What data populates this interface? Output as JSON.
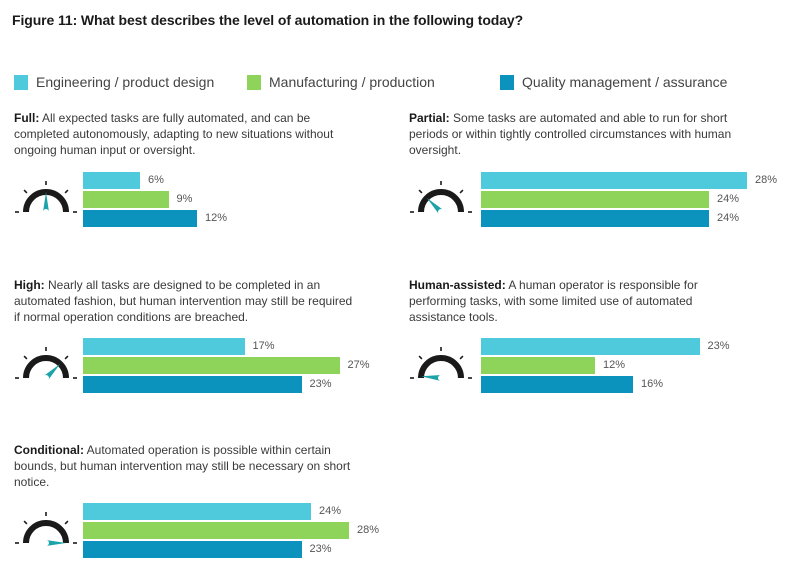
{
  "title": "Figure 11: What best describes the level of automation in the following today?",
  "colors": {
    "engineering": "#4fc9dc",
    "manufacturing": "#8ed45a",
    "quality": "#0b93bd",
    "gauge_arc": "#1a1a1a",
    "needle": "#1aa3a8"
  },
  "chart_data": {
    "type": "bar",
    "orientation": "horizontal",
    "title": "Figure 11: What best describes the level of automation in the following today?",
    "legend": [
      "Engineering / product design",
      "Manufacturing / production",
      "Quality management / assurance"
    ],
    "legend_position": "top",
    "value_unit": "%",
    "panels": [
      {
        "key": "full",
        "name": "Full:",
        "description": "All expected tasks are fully automated, and can be completed autonomously, adapting to new situations without ongoing human input or oversight.",
        "gauge_level": "full",
        "values": [
          6,
          9,
          12
        ],
        "labels": [
          "6%",
          "9%",
          "12%"
        ]
      },
      {
        "key": "partial",
        "name": "Partial:",
        "description": "Some tasks are automated and able to run for short periods or within tightly controlled circumstances with human oversight.",
        "gauge_level": "partial",
        "values": [
          28,
          24,
          24
        ],
        "labels": [
          "28%",
          "24%",
          "24%"
        ]
      },
      {
        "key": "high",
        "name": "High:",
        "description": "Nearly all tasks are designed to be completed in an automated fashion, but human intervention may still be required if normal operation conditions are breached.",
        "gauge_level": "high",
        "values": [
          17,
          27,
          23
        ],
        "labels": [
          "17%",
          "27%",
          "23%"
        ]
      },
      {
        "key": "human",
        "name": "Human-assisted:",
        "description": "A human operator is responsible for performing tasks, with some limited use of automated assistance tools.",
        "gauge_level": "human-assisted",
        "values": [
          23,
          12,
          16
        ],
        "labels": [
          "23%",
          "12%",
          "16%"
        ]
      },
      {
        "key": "conditional",
        "name": "Conditional:",
        "description": "Automated operation is possible within certain bounds, but human intervention may still be necessary on short notice.",
        "gauge_level": "conditional",
        "values": [
          24,
          28,
          23
        ],
        "labels": [
          "24%",
          "28%",
          "23%"
        ]
      }
    ]
  }
}
